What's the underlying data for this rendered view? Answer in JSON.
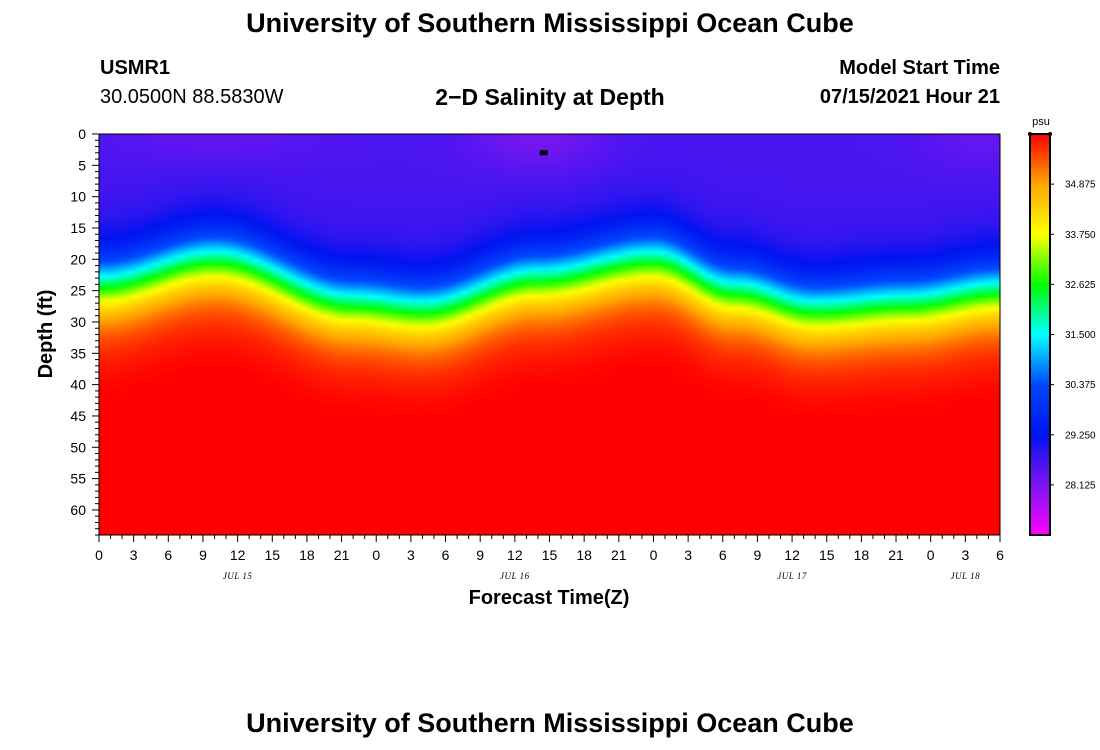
{
  "header": {
    "title": "University of Southern Mississippi Ocean Cube",
    "station_id": "USMR1",
    "coordinates": "30.0500N  88.5830W",
    "plot_title": "2−D Salinity at Depth",
    "start_label": "Model Start Time",
    "start_value": "07/15/2021 Hour 21"
  },
  "footer": {
    "title": "University of Southern Mississippi Ocean Cube"
  },
  "colors": {
    "ramp": [
      "#ff00ff",
      "#7a16f0",
      "#0014f0",
      "#0048ff",
      "#00ffff",
      "#00ff00",
      "#ffff00",
      "#ffa500",
      "#ff0000"
    ],
    "marker": "#000000"
  },
  "chart_data": {
    "type": "heatmap",
    "variable": "salinity",
    "unit": "psu",
    "xlabel": "Forecast Time(Z)",
    "ylabel": "Depth (ft)",
    "x_range_hours": [
      0,
      78
    ],
    "y_range_ft": [
      0,
      64
    ],
    "x_tick_labels": [
      "0",
      "3",
      "6",
      "9",
      "12",
      "15",
      "18",
      "21",
      "0",
      "3",
      "6",
      "9",
      "12",
      "15",
      "18",
      "21",
      "0",
      "3",
      "6",
      "9",
      "12",
      "15",
      "18",
      "21",
      "0",
      "3",
      "6"
    ],
    "y_tick_values": [
      0,
      5,
      10,
      15,
      20,
      25,
      30,
      35,
      40,
      45,
      50,
      55,
      60
    ],
    "day_labels": [
      {
        "label": "JUL 15",
        "hour": 12
      },
      {
        "label": "JUL 16",
        "hour": 36
      },
      {
        "label": "JUL 17",
        "hour": 60
      },
      {
        "label": "JUL 18",
        "hour": 75
      }
    ],
    "colorbar": {
      "min": 27.0,
      "max": 36.0,
      "tick_values": [
        28.125,
        29.25,
        30.375,
        31.5,
        32.625,
        33.75,
        34.875
      ],
      "tick_labels": [
        "28.125",
        "29.250",
        "30.375",
        "31.500",
        "32.625",
        "33.750",
        "34.875"
      ]
    },
    "field_model": {
      "surface_min_psu": 28.2,
      "bottom_max_psu": 35.9,
      "halocline_depth_ft_by_hour": [
        [
          0,
          24
        ],
        [
          10,
          20
        ],
        [
          22,
          27
        ],
        [
          28,
          28
        ],
        [
          38,
          23
        ],
        [
          48,
          20
        ],
        [
          55,
          25
        ],
        [
          62,
          28
        ],
        [
          70,
          27
        ],
        [
          78,
          25
        ]
      ]
    },
    "marker": {
      "hour": 38.5,
      "depth_ft": 3
    }
  }
}
